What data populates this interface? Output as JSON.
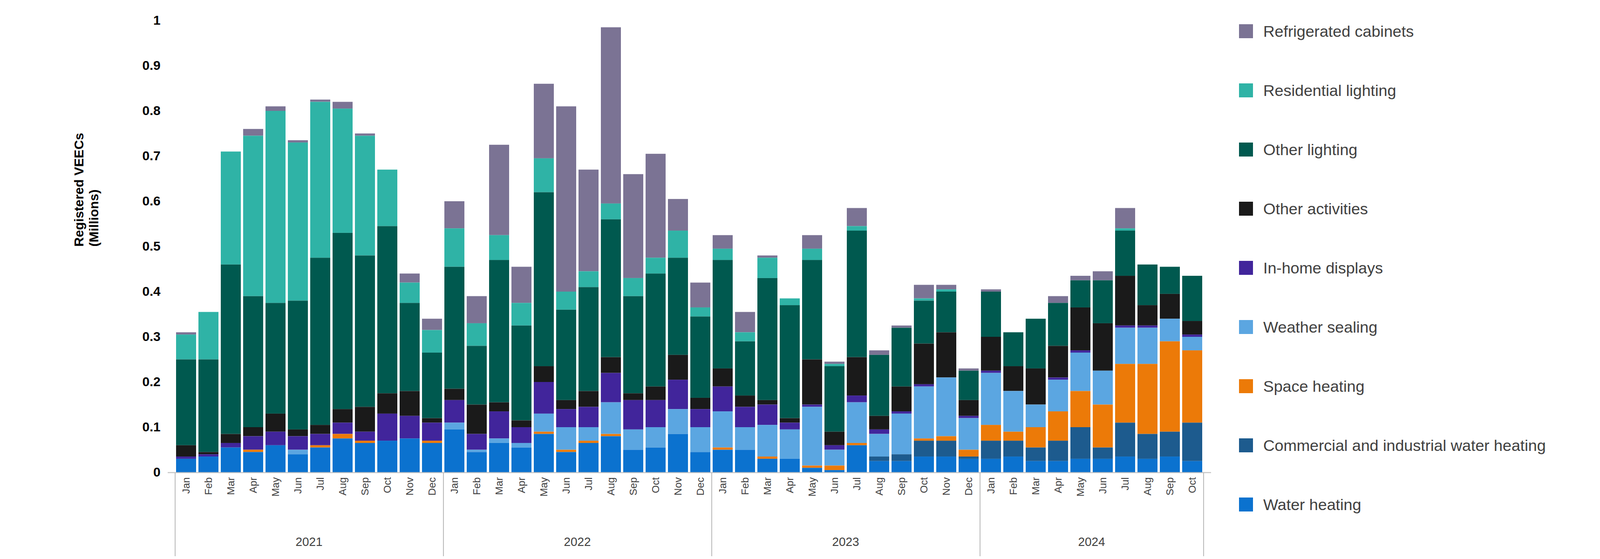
{
  "chart_data": {
    "type": "bar",
    "stacked": true,
    "grid": false,
    "legend": "right",
    "y_label": "Registered VEECs\n(Millions)",
    "ylim": [
      0,
      1
    ],
    "yticks": [
      0,
      0.1,
      0.2,
      0.3,
      0.4,
      0.5,
      0.6,
      0.7,
      0.8,
      0.9,
      1
    ],
    "categories": [
      "Jan",
      "Feb",
      "Mar",
      "Apr",
      "May",
      "Jun",
      "Jul",
      "Aug",
      "Sep",
      "Oct",
      "Nov",
      "Dec",
      "Jan",
      "Feb",
      "Mar",
      "Apr",
      "May",
      "Jun",
      "Jul",
      "Aug",
      "Sep",
      "Oct",
      "Nov",
      "Dec",
      "Jan",
      "Feb",
      "Mar",
      "Apr",
      "May",
      "Jun",
      "Jul",
      "Aug",
      "Sep",
      "Oct",
      "Nov",
      "Dec",
      "Jan",
      "Feb",
      "Mar",
      "Apr",
      "May",
      "Jun",
      "Jul",
      "Aug",
      "Sep",
      "Oct"
    ],
    "x_groups": [
      {
        "label": "2021",
        "count": 12
      },
      {
        "label": "2022",
        "count": 12
      },
      {
        "label": "2023",
        "count": 12
      },
      {
        "label": "2024",
        "count": 10
      }
    ],
    "series": [
      {
        "name": "Refrigerated cabinets",
        "color": "#7b7394",
        "values": [
          0.005,
          0,
          0,
          0.015,
          0.01,
          0.005,
          0.005,
          0.015,
          0.005,
          0,
          0.02,
          0.025,
          0.06,
          0.06,
          0.2,
          0.08,
          0.165,
          0.41,
          0.225,
          0.39,
          0.23,
          0.23,
          0.07,
          0.055,
          0.03,
          0.045,
          0.005,
          0,
          0.03,
          0.005,
          0.04,
          0.01,
          0.005,
          0.03,
          0.01,
          0.005,
          0.005,
          0,
          0,
          0.015,
          0.01,
          0.02,
          0.045,
          0,
          0,
          0
        ]
      },
      {
        "name": "Residential lighting",
        "color": "#2fb3a6",
        "values": [
          0.055,
          0.105,
          0.25,
          0.355,
          0.425,
          0.35,
          0.345,
          0.275,
          0.265,
          0.125,
          0.045,
          0.05,
          0.085,
          0.05,
          0.055,
          0.05,
          0.075,
          0.04,
          0.035,
          0.035,
          0.04,
          0.035,
          0.06,
          0.02,
          0.025,
          0.02,
          0.045,
          0.015,
          0.025,
          0.005,
          0.01,
          0,
          0,
          0.005,
          0.005,
          0,
          0,
          0,
          0,
          0,
          0,
          0,
          0.005,
          0,
          0,
          0
        ]
      },
      {
        "name": "Other lighting",
        "color": "#00594f",
        "values": [
          0.19,
          0.205,
          0.375,
          0.29,
          0.245,
          0.285,
          0.37,
          0.39,
          0.335,
          0.37,
          0.195,
          0.145,
          0.27,
          0.13,
          0.315,
          0.21,
          0.385,
          0.2,
          0.23,
          0.305,
          0.215,
          0.25,
          0.215,
          0.18,
          0.24,
          0.12,
          0.27,
          0.25,
          0.22,
          0.145,
          0.28,
          0.135,
          0.13,
          0.095,
          0.09,
          0.065,
          0.1,
          0.075,
          0.11,
          0.095,
          0.06,
          0.095,
          0.1,
          0.09,
          0.06,
          0.1
        ]
      },
      {
        "name": "Other activities",
        "color": "#1a1a1a",
        "values": [
          0.025,
          0.005,
          0.02,
          0.02,
          0.04,
          0.015,
          0.02,
          0.03,
          0.055,
          0.045,
          0.055,
          0.01,
          0.025,
          0.065,
          0.02,
          0.015,
          0.035,
          0.02,
          0.035,
          0.035,
          0.015,
          0.03,
          0.055,
          0.025,
          0.04,
          0.025,
          0.01,
          0.01,
          0.1,
          0.03,
          0.085,
          0.03,
          0.055,
          0.09,
          0.1,
          0.035,
          0.075,
          0.055,
          0.08,
          0.07,
          0.095,
          0.105,
          0.11,
          0.045,
          0.055,
          0.03
        ]
      },
      {
        "name": "In-home displays",
        "color": "#41259b",
        "values": [
          0.005,
          0.005,
          0.01,
          0.03,
          0.03,
          0.03,
          0.025,
          0.025,
          0.02,
          0.06,
          0.05,
          0.04,
          0.05,
          0.035,
          0.06,
          0.035,
          0.07,
          0.04,
          0.045,
          0.065,
          0.065,
          0.06,
          0.065,
          0.04,
          0.055,
          0.045,
          0.045,
          0.015,
          0.005,
          0.01,
          0.015,
          0.01,
          0.005,
          0.005,
          0,
          0.005,
          0.005,
          0,
          0,
          0.005,
          0.005,
          0,
          0.005,
          0.005,
          0,
          0.005
        ]
      },
      {
        "name": "Weather sealing",
        "color": "#5ba6e1",
        "values": [
          0,
          0,
          0,
          0,
          0,
          0.01,
          0,
          0,
          0,
          0,
          0,
          0,
          0.015,
          0.005,
          0.01,
          0.01,
          0.04,
          0.05,
          0.03,
          0.07,
          0.045,
          0.045,
          0.055,
          0.055,
          0.08,
          0.05,
          0.07,
          0.065,
          0.13,
          0.035,
          0.09,
          0.05,
          0.09,
          0.115,
          0.13,
          0.07,
          0.115,
          0.09,
          0.05,
          0.07,
          0.085,
          0.075,
          0.08,
          0.08,
          0.05,
          0.03
        ]
      },
      {
        "name": "Space heating",
        "color": "#ec7a08",
        "values": [
          0,
          0,
          0,
          0.005,
          0,
          0,
          0.005,
          0.01,
          0.005,
          0,
          0,
          0.005,
          0,
          0,
          0,
          0,
          0.005,
          0.005,
          0.005,
          0.005,
          0,
          0,
          0,
          0,
          0.005,
          0,
          0.005,
          0,
          0.005,
          0.01,
          0.005,
          0,
          0,
          0.005,
          0.01,
          0.015,
          0.035,
          0.02,
          0.045,
          0.065,
          0.08,
          0.095,
          0.13,
          0.155,
          0.2,
          0.16
        ]
      },
      {
        "name": "Commercial and industrial water heating",
        "color": "#1d5b8e",
        "values": [
          0,
          0,
          0,
          0,
          0,
          0,
          0,
          0,
          0,
          0,
          0,
          0,
          0,
          0,
          0,
          0,
          0,
          0,
          0,
          0,
          0,
          0,
          0,
          0,
          0,
          0,
          0,
          0,
          0,
          0,
          0,
          0.01,
          0.015,
          0.035,
          0.035,
          0.005,
          0.04,
          0.035,
          0.03,
          0.045,
          0.07,
          0.025,
          0.075,
          0.055,
          0.055,
          0.085
        ]
      },
      {
        "name": "Water heating",
        "color": "#0b72cf",
        "values": [
          0.03,
          0.035,
          0.055,
          0.045,
          0.06,
          0.04,
          0.055,
          0.075,
          0.065,
          0.07,
          0.075,
          0.065,
          0.095,
          0.045,
          0.065,
          0.055,
          0.085,
          0.045,
          0.065,
          0.08,
          0.05,
          0.055,
          0.085,
          0.045,
          0.05,
          0.05,
          0.03,
          0.03,
          0.01,
          0.005,
          0.06,
          0.025,
          0.025,
          0.035,
          0.035,
          0.03,
          0.03,
          0.035,
          0.025,
          0.025,
          0.03,
          0.03,
          0.035,
          0.03,
          0.035,
          0.025
        ]
      }
    ]
  }
}
